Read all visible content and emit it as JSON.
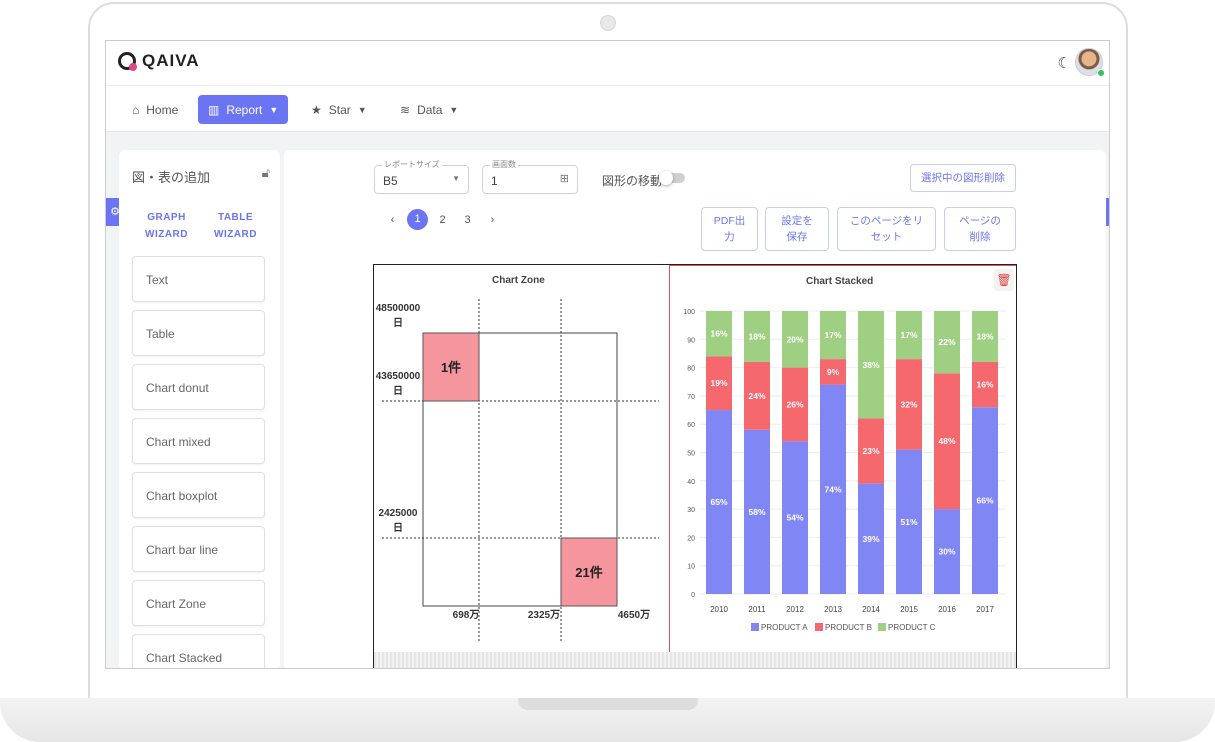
{
  "app": {
    "name": "QAIVA"
  },
  "nav": [
    {
      "label": "Home",
      "icon": "home-icon"
    },
    {
      "label": "Report",
      "icon": "bar-chart-icon",
      "active": true
    },
    {
      "label": "Star",
      "icon": "star-icon"
    },
    {
      "label": "Data",
      "icon": "database-icon"
    }
  ],
  "sidebar": {
    "title": "図・表の追加",
    "graph_wizard": [
      "GRAPH",
      "WIZARD"
    ],
    "table_wizard": [
      "TABLE",
      "WIZARD"
    ],
    "items": [
      "Text",
      "Table",
      "Chart donut",
      "Chart mixed",
      "Chart boxplot",
      "Chart bar line",
      "Chart Zone",
      "Chart Stacked"
    ]
  },
  "toolbar": {
    "report_size_label": "レポートサイズ",
    "report_size_value": "B5",
    "page_count_label": "画面数",
    "page_count_value": "1",
    "move_label": "図形の移動",
    "delete_selected": "選択中の図形削除",
    "pdf_lines": [
      "PDF出",
      "力"
    ],
    "save_lines": [
      "設定を",
      "保存"
    ],
    "reset_lines": [
      "このページをリ",
      "セット"
    ],
    "delete_page_lines": [
      "ページの",
      "削除"
    ],
    "pages": [
      "1",
      "2",
      "3"
    ],
    "current_page": "1",
    "prev": "‹",
    "next": "›"
  },
  "chart_data": [
    {
      "type": "scatter",
      "title": "Chart Zone",
      "y_ticks": [
        "48500000",
        "43650000",
        "2425000"
      ],
      "y_unit": "日",
      "x_ticks": [
        "698万",
        "2325万",
        "4650万"
      ],
      "zones": [
        {
          "label": "1件",
          "position": "top-left",
          "color": "#f4909a"
        },
        {
          "label": "21件",
          "position": "bottom-right",
          "color": "#f4909a"
        }
      ]
    },
    {
      "type": "bar",
      "stacked": true,
      "title": "Chart Stacked",
      "categories": [
        "2010",
        "2011",
        "2012",
        "2013",
        "2014",
        "2015",
        "2016",
        "2017"
      ],
      "ylim": [
        0,
        100
      ],
      "y_ticks": [
        0,
        10,
        20,
        30,
        40,
        50,
        60,
        70,
        80,
        90,
        100
      ],
      "legend_position": "bottom",
      "series": [
        {
          "name": "PRODUCT A",
          "color": "#8087f5",
          "values": [
            65,
            58,
            54,
            74,
            39,
            51,
            30,
            66
          ]
        },
        {
          "name": "PRODUCT B",
          "color": "#f4686e",
          "values": [
            19,
            24,
            26,
            9,
            23,
            32,
            48,
            16
          ]
        },
        {
          "name": "PRODUCT C",
          "color": "#9fcf82",
          "values": [
            16,
            18,
            20,
            17,
            38,
            17,
            22,
            18
          ]
        }
      ]
    }
  ]
}
